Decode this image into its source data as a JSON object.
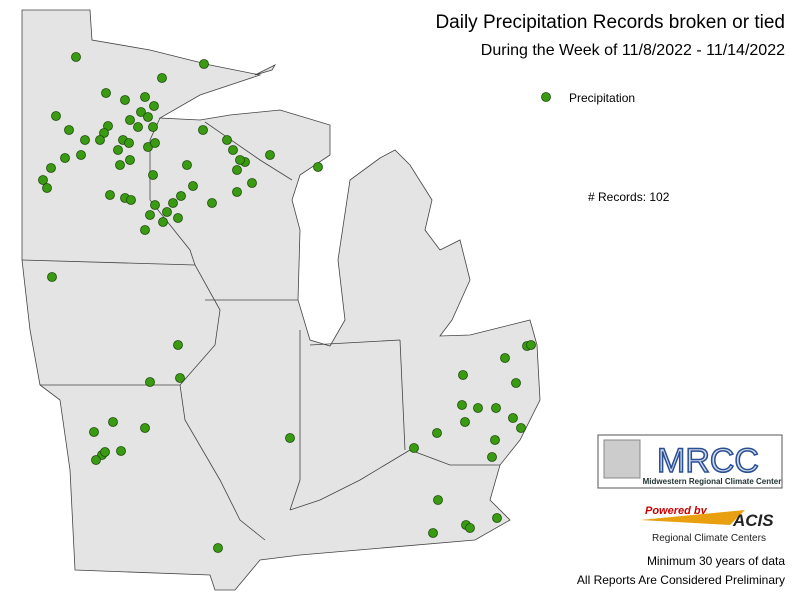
{
  "header": {
    "title": "Daily Precipitation Records broken or tied",
    "subtitle": "During the Week of 11/8/2022 - 11/14/2022"
  },
  "legend": {
    "label": "Precipitation",
    "color": "#3a9a12"
  },
  "records": "# Records: 102",
  "logo": {
    "mrcc": "MRCC",
    "mrcc_name": "Midwestern Regional Climate Center",
    "powered": "Powered by",
    "acis": "ACIS",
    "rcc": "Regional Climate Centers"
  },
  "footer": {
    "minimum": "Minimum 30 years of data",
    "note": "All Reports Are Considered Preliminary"
  }
}
